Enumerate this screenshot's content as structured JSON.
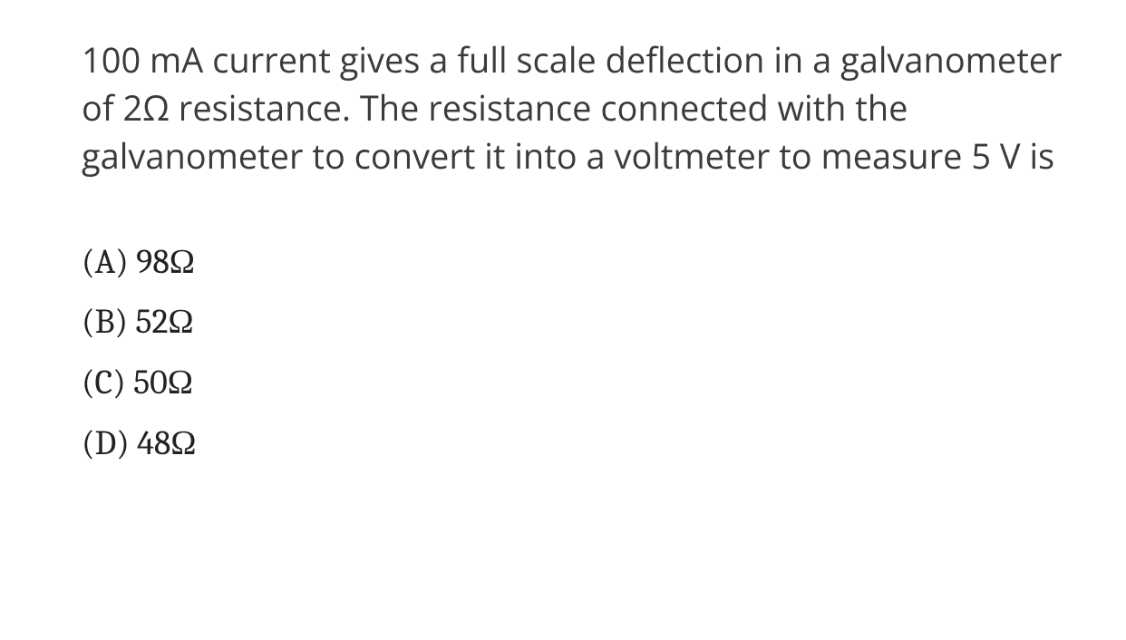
{
  "question": {
    "text": "100 mA current gives a full scale deflection in a galvanometer of 2Ω resistance. The resistance connected with the galvanometer to convert it into a voltmeter to measure 5 V is",
    "text_color": "#3b3b3b",
    "font_size_pt": 29,
    "font_family": "Segoe UI, Open Sans, Arial, sans-serif",
    "background_color": "#ffffff"
  },
  "options": {
    "font_family": "Cambria, Georgia, Times New Roman, serif",
    "font_size_pt": 29,
    "text_color": "#222222",
    "items": [
      {
        "label": "(A) 98Ω"
      },
      {
        "label": "(B) 52Ω"
      },
      {
        "label": "(C) 50Ω"
      },
      {
        "label": "(D) 48Ω"
      }
    ]
  }
}
